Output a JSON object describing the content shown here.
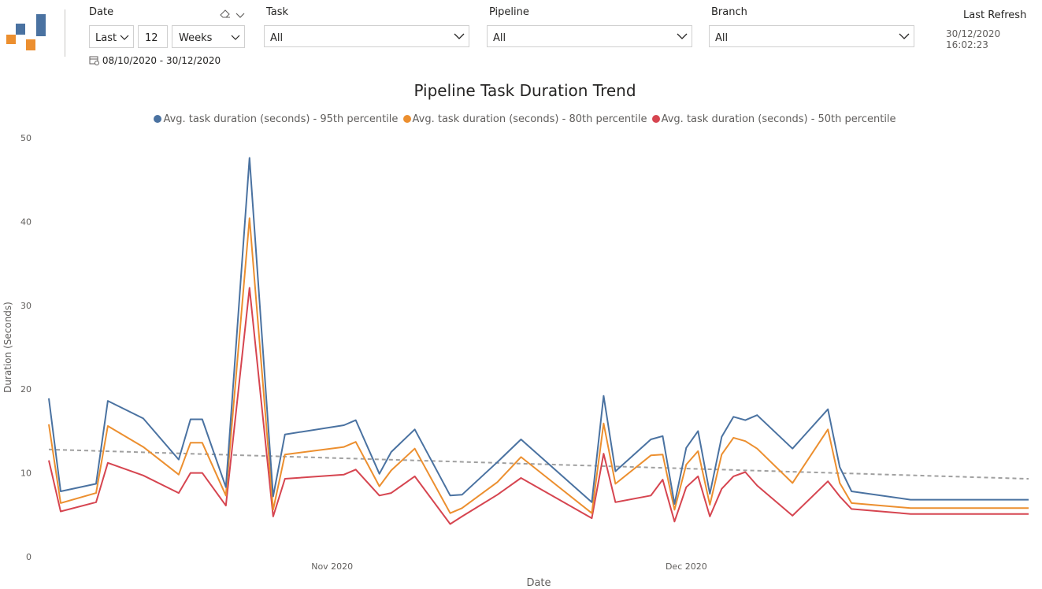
{
  "filters": {
    "date": {
      "label": "Date",
      "relative": "Last",
      "count": "12",
      "unit": "Weeks",
      "range": "08/10/2020 - 30/12/2020"
    },
    "task": {
      "label": "Task",
      "value": "All"
    },
    "pipeline": {
      "label": "Pipeline",
      "value": "All"
    },
    "branch": {
      "label": "Branch",
      "value": "All"
    }
  },
  "last_refresh": {
    "label": "Last Refresh",
    "value": "30/12/2020 16:02:23"
  },
  "colors": {
    "p95": "#4a72a1",
    "p80": "#ec8f2f",
    "p50": "#d64550",
    "trend": "#a0a0a0",
    "logo_blue": "#4a72a1",
    "logo_orange": "#ec8f2f"
  },
  "chart_data": {
    "type": "line",
    "title": "Pipeline Task Duration Trend",
    "xlabel": "Date",
    "ylabel": "Duration (Seconds)",
    "ylim": [
      0,
      50
    ],
    "yticks": [
      0,
      10,
      20,
      30,
      40,
      50
    ],
    "xlim": [
      "2020-10-08",
      "2020-12-30"
    ],
    "xticks": [
      {
        "date": "2020-11-01",
        "label": "Nov 2020"
      },
      {
        "date": "2020-12-01",
        "label": "Dec 2020"
      }
    ],
    "legend_position": "top-center",
    "grid": false,
    "x": [
      "2020-10-08",
      "2020-10-09",
      "2020-10-12",
      "2020-10-13",
      "2020-10-16",
      "2020-10-19",
      "2020-10-20",
      "2020-10-21",
      "2020-10-23",
      "2020-10-25",
      "2020-10-27",
      "2020-10-28",
      "2020-11-02",
      "2020-11-03",
      "2020-11-05",
      "2020-11-06",
      "2020-11-08",
      "2020-11-11",
      "2020-11-12",
      "2020-11-15",
      "2020-11-17",
      "2020-11-23",
      "2020-11-24",
      "2020-11-25",
      "2020-11-28",
      "2020-11-29",
      "2020-11-30",
      "2020-12-01",
      "2020-12-02",
      "2020-12-03",
      "2020-12-04",
      "2020-12-05",
      "2020-12-06",
      "2020-12-07",
      "2020-12-10",
      "2020-12-13",
      "2020-12-14",
      "2020-12-15",
      "2020-12-20",
      "2020-12-30"
    ],
    "series": [
      {
        "name": "Avg. task duration (seconds) - 95th percentile",
        "values": [
          18.9,
          7.8,
          8.7,
          18.6,
          16.5,
          11.6,
          16.4,
          16.4,
          8.3,
          47.6,
          7.2,
          14.6,
          15.7,
          16.3,
          9.9,
          12.5,
          15.2,
          7.3,
          7.4,
          11.3,
          14.0,
          6.5,
          19.2,
          10.2,
          14.0,
          14.4,
          6.3,
          13.0,
          15.0,
          7.5,
          14.3,
          16.7,
          16.3,
          16.9,
          12.9,
          17.6,
          10.7,
          7.8,
          6.8,
          6.8
        ]
      },
      {
        "name": "Avg. task duration (seconds) - 80th percentile",
        "values": [
          15.8,
          6.4,
          7.6,
          15.6,
          13.1,
          9.8,
          13.6,
          13.6,
          7.3,
          40.4,
          5.6,
          12.2,
          13.1,
          13.7,
          8.4,
          10.3,
          12.9,
          5.2,
          5.8,
          8.9,
          11.9,
          5.2,
          15.9,
          8.7,
          12.1,
          12.2,
          5.6,
          11.0,
          12.6,
          6.2,
          12.2,
          14.2,
          13.8,
          12.9,
          8.8,
          15.2,
          8.8,
          6.4,
          5.8,
          5.8
        ]
      },
      {
        "name": "Avg. task duration (seconds) - 50th percentile",
        "values": [
          11.5,
          5.4,
          6.5,
          11.2,
          9.7,
          7.6,
          10.0,
          10.0,
          6.1,
          32.1,
          4.8,
          9.3,
          9.8,
          10.4,
          7.3,
          7.6,
          9.6,
          3.9,
          4.8,
          7.4,
          9.4,
          4.6,
          12.3,
          6.5,
          7.3,
          9.2,
          4.2,
          8.3,
          9.6,
          4.8,
          8.1,
          9.6,
          10.1,
          8.5,
          4.9,
          9.0,
          7.2,
          5.7,
          5.1,
          5.1
        ]
      }
    ],
    "trendline": {
      "start": 12.8,
      "end": 9.3,
      "style": "dashed"
    }
  }
}
